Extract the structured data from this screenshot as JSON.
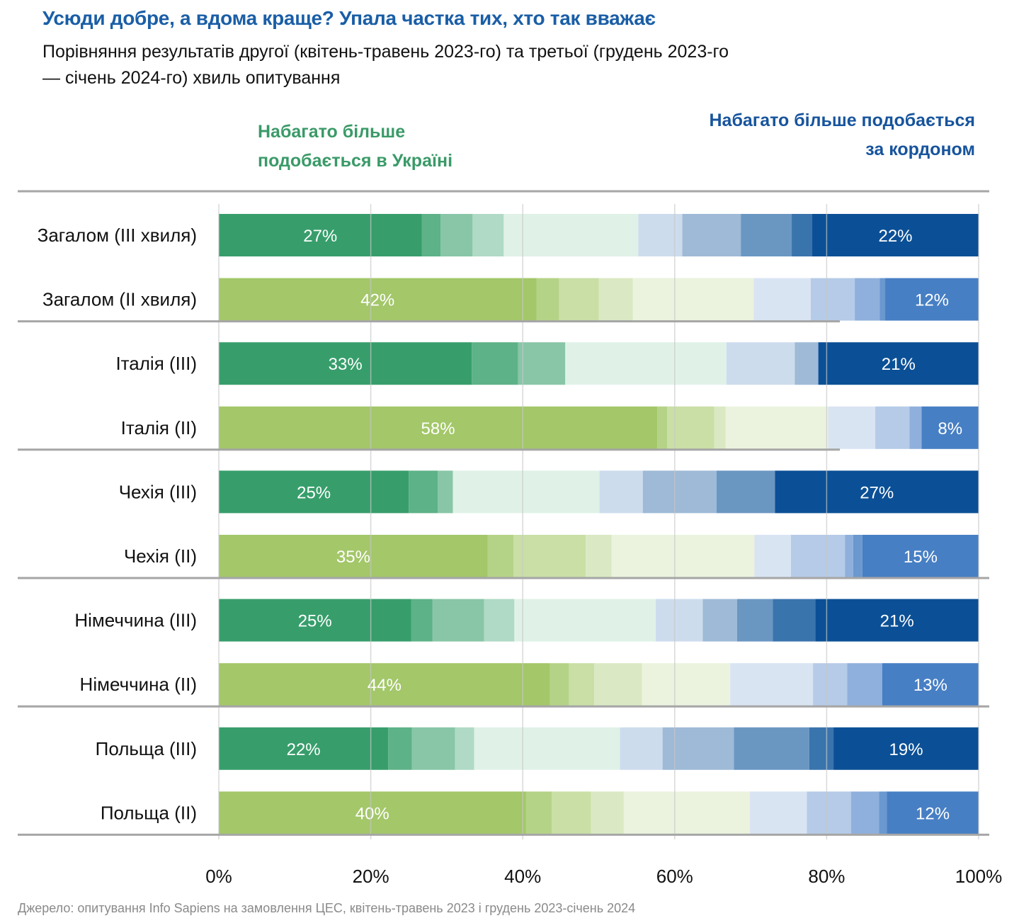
{
  "chart_data": {
    "type": "bar",
    "orientation": "horizontal",
    "stacked": true,
    "title": "Усюди добре, а вдома краще? Упала частка тих, хто так вважає",
    "subtitle": "Порівняння результатів другої (квітень-травень 2023-го) та третьої (грудень 2023-го — січень 2024-го) хвиль опитування",
    "left_header": "Набагато більше подобається в Україні",
    "right_header": "Набагато більше подобається за кордоном",
    "xlabel": "",
    "ylabel": "",
    "xlim": [
      0,
      100
    ],
    "x_ticks": [
      "0%",
      "20%",
      "40%",
      "60%",
      "80%",
      "100%"
    ],
    "x_tick_values": [
      0,
      20,
      40,
      60,
      80,
      100
    ],
    "grid": true,
    "categories": [
      "Загалом (III хвиля)",
      "Загалом (II хвиля)",
      "Італія (III)",
      "Італія (II)",
      "Чехія (III)",
      "Чехія (II)",
      "Німеччина (III)",
      "Німеччина (II)",
      "Польща (III)",
      "Польща (II)"
    ],
    "wave": [
      "III",
      "II",
      "III",
      "II",
      "III",
      "II",
      "III",
      "II",
      "III",
      "II"
    ],
    "segments": [
      [
        26.7,
        2.5,
        4.2,
        4.1,
        17.7,
        5.8,
        7.7,
        6.7,
        2.7,
        21.9
      ],
      [
        41.8,
        3.0,
        5.2,
        4.5,
        15.9,
        7.5,
        5.8,
        3.3,
        0.7,
        12.3
      ],
      [
        33.3,
        6.1,
        6.2,
        0,
        21.2,
        9.0,
        3.1,
        0,
        0,
        21.1
      ],
      [
        57.7,
        1.3,
        6.2,
        1.5,
        13.5,
        6.2,
        4.5,
        1.6,
        0,
        7.5
      ],
      [
        25.0,
        3.8,
        2.0,
        0,
        19.3,
        5.7,
        9.7,
        7.7,
        0,
        26.8
      ],
      [
        35.4,
        3.4,
        9.5,
        3.4,
        18.8,
        4.8,
        7.1,
        1.1,
        1.2,
        15.3
      ],
      [
        25.3,
        2.8,
        6.8,
        4.0,
        18.6,
        6.2,
        4.5,
        4.7,
        5.6,
        21.5
      ],
      [
        43.6,
        2.5,
        3.3,
        6.3,
        11.6,
        10.9,
        4.5,
        4.6,
        0,
        12.7
      ],
      [
        22.3,
        3.1,
        5.7,
        2.5,
        19.2,
        5.6,
        9.4,
        9.9,
        3.2,
        19.1
      ],
      [
        40.4,
        3.4,
        5.2,
        4.3,
        16.6,
        7.5,
        5.8,
        3.7,
        1.0,
        12.1
      ]
    ],
    "data_labels": [
      [
        "27%",
        "22%"
      ],
      [
        "42%",
        "12%"
      ],
      [
        "33%",
        "21%"
      ],
      [
        "58%",
        "8%"
      ],
      [
        "25%",
        "27%"
      ],
      [
        "35%",
        "15%"
      ],
      [
        "25%",
        "21%"
      ],
      [
        "44%",
        "13%"
      ],
      [
        "22%",
        "19%"
      ],
      [
        "40%",
        "12%"
      ]
    ],
    "colors": {
      "III": [
        "#379e6b",
        "#5db287",
        "#88c6a7",
        "#b0dac5",
        "#e0f2e8",
        "#cddced",
        "#9ebad7",
        "#6a97c2",
        "#3a74ad",
        "#0b5096"
      ],
      "II": [
        "#a3c769",
        "#b5d387",
        "#c9dfa6",
        "#dae9c3",
        "#ebf3de",
        "#d9e4f3",
        "#b5cbe8",
        "#8fb0dc",
        "#6a98cf",
        "#477fc4"
      ]
    },
    "group_separators_after": [
      1,
      3,
      5,
      7,
      9
    ]
  },
  "source": "Джерело: опитування Info Sapiens на замовлення ЦЕС, квітень-травень 2023 і грудень 2023-січень 2024"
}
